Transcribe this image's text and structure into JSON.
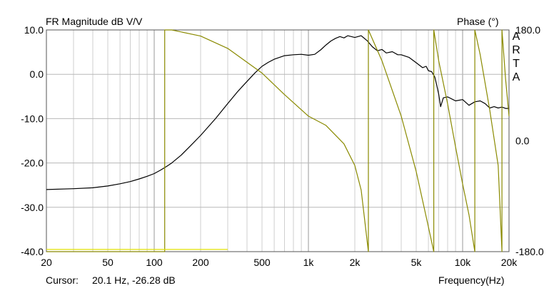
{
  "chart_data": {
    "type": "line",
    "title": "FR Magnitude dB V/V",
    "right_title": "Phase (°)",
    "watermark": "ARTA",
    "xlabel": "Frequency(Hz)",
    "x_scale": "log",
    "xlim": [
      20,
      20000
    ],
    "ylim": [
      -40,
      10
    ],
    "y2lim": [
      -180,
      180
    ],
    "grid": true,
    "x_ticks": [
      {
        "value": 20,
        "label": "20"
      },
      {
        "value": 50,
        "label": "50"
      },
      {
        "value": 100,
        "label": "100"
      },
      {
        "value": 200,
        "label": "200"
      },
      {
        "value": 500,
        "label": "500"
      },
      {
        "value": 1000,
        "label": "1k"
      },
      {
        "value": 2000,
        "label": "2k"
      },
      {
        "value": 5000,
        "label": "5k"
      },
      {
        "value": 10000,
        "label": "10k"
      },
      {
        "value": 20000,
        "label": "20k"
      }
    ],
    "y_ticks": [
      {
        "value": 10,
        "label": "10.0"
      },
      {
        "value": 0,
        "label": "0.0"
      },
      {
        "value": -10,
        "label": "-10.0"
      },
      {
        "value": -20,
        "label": "-20.0"
      },
      {
        "value": -30,
        "label": "-30.0"
      },
      {
        "value": -40,
        "label": "-40.0"
      }
    ],
    "y2_ticks": [
      {
        "value": 180,
        "label": "180.0"
      },
      {
        "value": 0,
        "label": "0.0"
      },
      {
        "value": -180,
        "label": "-180.0"
      }
    ],
    "series": [
      {
        "axis": "left",
        "color": "#000000",
        "x": [
          20,
          30,
          40,
          50,
          60,
          70,
          80,
          90,
          100,
          110,
          120,
          130,
          150,
          170,
          200,
          250,
          300,
          350,
          400,
          450,
          500,
          550,
          600,
          700,
          800,
          900,
          1000,
          1100,
          1200,
          1300,
          1400,
          1500,
          1600,
          1700,
          1800,
          2000,
          2200,
          2400,
          2600,
          2800,
          3000,
          3200,
          3500,
          3800,
          4000,
          4500,
          5000,
          5500,
          5800,
          6000,
          6300,
          6600,
          6800,
          7000,
          7200,
          7500,
          8000,
          9000,
          10000,
          11000,
          12000,
          13000,
          14000,
          15000,
          16000,
          17000,
          18000,
          19000,
          20000
        ],
        "y": [
          -26.0,
          -25.8,
          -25.6,
          -25.2,
          -24.7,
          -24.2,
          -23.6,
          -23.0,
          -22.4,
          -21.6,
          -20.8,
          -20.0,
          -18.2,
          -16.3,
          -13.8,
          -10.0,
          -6.6,
          -3.8,
          -1.6,
          0.3,
          1.8,
          2.7,
          3.4,
          4.2,
          4.4,
          4.5,
          4.3,
          4.5,
          5.5,
          6.6,
          7.5,
          8.1,
          8.5,
          8.2,
          8.7,
          8.3,
          8.7,
          7.6,
          6.2,
          5.3,
          5.6,
          4.8,
          5.1,
          4.4,
          4.4,
          3.8,
          2.6,
          1.5,
          1.8,
          0.8,
          0.6,
          -0.6,
          -2.5,
          -4.5,
          -7.3,
          -5.3,
          -5.1,
          -6.0,
          -5.7,
          -7.0,
          -6.2,
          -6.0,
          -6.6,
          -7.6,
          -7.3,
          -7.6,
          -7.4,
          -7.7,
          -7.7
        ]
      },
      {
        "axis": "right",
        "color": "#8a8a00",
        "x": [
          20,
          117,
          117,
          130,
          200,
          300,
          500,
          700,
          1000,
          1300,
          1700,
          2000,
          2200,
          2450,
          2450,
          2500,
          3000,
          4000,
          5000,
          6000,
          6500,
          6500,
          7000,
          8000,
          9000,
          10000,
          11000,
          12000,
          12000,
          13000,
          15000,
          17000,
          18000,
          18000,
          19000,
          20000
        ],
        "y": [
          -180,
          -180,
          180,
          180,
          170,
          150,
          110,
          75,
          40,
          25,
          -5,
          -40,
          -80,
          -180,
          180,
          175,
          130,
          40,
          -50,
          -140,
          -180,
          180,
          130,
          60,
          -10,
          -70,
          -120,
          -180,
          180,
          140,
          50,
          -40,
          -180,
          180,
          100,
          40
        ]
      },
      {
        "axis": "left",
        "color": "#e0e000",
        "x": [
          20,
          300
        ],
        "y": [
          -39.5,
          -39.5
        ]
      }
    ]
  },
  "cursor": {
    "label": "Cursor:",
    "value": "20.1 Hz, -26.28 dB"
  }
}
